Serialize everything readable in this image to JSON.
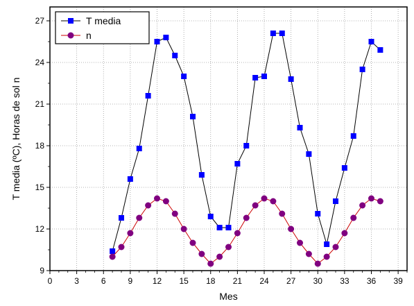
{
  "chart_data": {
    "type": "line",
    "xlabel": "Mes",
    "ylabel": "T media (ºC), Horas de sol n",
    "xlim": [
      0,
      40
    ],
    "ylim": [
      9,
      28
    ],
    "xticks": [
      0,
      3,
      6,
      9,
      12,
      15,
      18,
      21,
      24,
      27,
      30,
      33,
      36,
      39
    ],
    "yticks": [
      9,
      12,
      15,
      18,
      21,
      24,
      27
    ],
    "grid": true,
    "legend_position": "top-left",
    "x": [
      7,
      8,
      9,
      10,
      11,
      12,
      13,
      14,
      15,
      16,
      17,
      18,
      19,
      20,
      21,
      22,
      23,
      24,
      25,
      26,
      27,
      28,
      29,
      30,
      31,
      32,
      33,
      34,
      35,
      36,
      37
    ],
    "series": [
      {
        "name": "T media",
        "color": "#0000ff",
        "marker": "square",
        "values": [
          10.4,
          12.8,
          15.6,
          17.8,
          21.6,
          25.5,
          25.8,
          24.5,
          23.0,
          20.1,
          15.9,
          12.9,
          12.1,
          12.1,
          16.7,
          18.0,
          22.9,
          23.0,
          26.1,
          26.1,
          22.8,
          19.3,
          17.4,
          13.1,
          10.9,
          14.0,
          16.4,
          18.7,
          23.5,
          25.5,
          24.9
        ]
      },
      {
        "name": "n",
        "color": "#800080",
        "marker": "circle",
        "values": [
          10.0,
          10.7,
          11.7,
          12.8,
          13.7,
          14.2,
          14.0,
          13.1,
          12.0,
          11.0,
          10.2,
          9.5,
          10.0,
          10.7,
          11.7,
          12.8,
          13.7,
          14.2,
          14.0,
          13.1,
          12.0,
          11.0,
          10.2,
          9.5,
          10.0,
          10.7,
          11.7,
          12.8,
          13.7,
          14.2,
          14.0
        ]
      }
    ]
  }
}
